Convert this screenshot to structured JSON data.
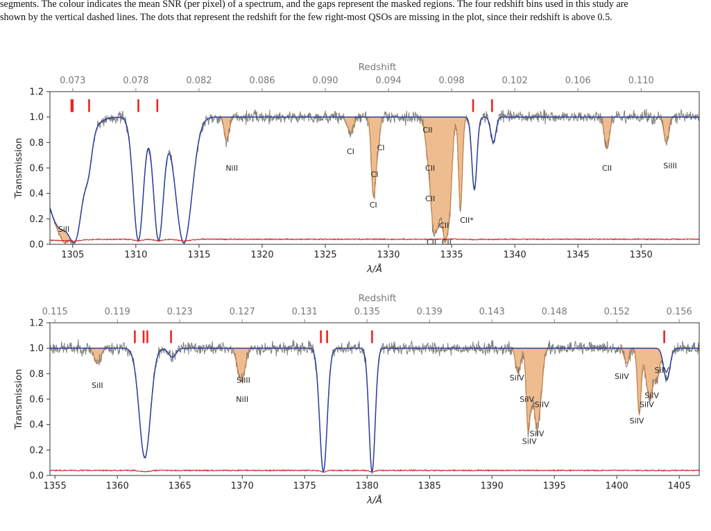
{
  "caption": {
    "line1": "segments. The colour indicates the mean SNR (per pixel) of a spectrum, and the gaps represent the masked regions. The four redshift bins used in this study are",
    "line2": "shown by the vertical dashed lines. The dots that represent the redshift for the few right-most QSOs are missing in the plot, since their redshift is above 0.5."
  },
  "colors": {
    "data": "#7f7f7f",
    "model": "#2a3f9e",
    "absorption_fill": "#eebd8f",
    "absorption_edge": "#c8834a",
    "error": "#cc2222",
    "marker": "#ee2222",
    "axis": "#333333"
  },
  "chart_data": [
    {
      "type": "line",
      "xlabel": "λ/Å",
      "ylabel": "Transmission",
      "top_axis_label": "Redshift",
      "xlim": [
        1303.2,
        1354.6
      ],
      "ylim": [
        0.0,
        1.2
      ],
      "x_ticks": [
        1305,
        1310,
        1315,
        1320,
        1325,
        1330,
        1335,
        1340,
        1345,
        1350
      ],
      "y_ticks": [
        "0.0",
        "0.2",
        "0.4",
        "0.6",
        "0.8",
        "1.0",
        "1.2"
      ],
      "top_ticks": [
        {
          "label": "0.073",
          "x": 1305.0
        },
        {
          "label": "0.078",
          "x": 1310.0
        },
        {
          "label": "0.082",
          "x": 1315.0
        },
        {
          "label": "0.086",
          "x": 1320.0
        },
        {
          "label": "0.090",
          "x": 1325.0
        },
        {
          "label": "0.094",
          "x": 1330.0
        },
        {
          "label": "0.098",
          "x": 1335.0
        },
        {
          "label": "0.102",
          "x": 1340.0
        },
        {
          "label": "0.106",
          "x": 1345.0
        },
        {
          "label": "0.110",
          "x": 1350.0
        }
      ],
      "model_lines": [
        {
          "center": 1304.0,
          "depth": 0.86,
          "width": 1.3
        },
        {
          "center": 1305.1,
          "depth": 0.97,
          "width": 0.55
        },
        {
          "center": 1306.2,
          "depth": 0.28,
          "width": 0.3
        },
        {
          "center": 1310.2,
          "depth": 0.97,
          "width": 0.4
        },
        {
          "center": 1311.8,
          "depth": 0.97,
          "width": 0.4
        },
        {
          "center": 1313.8,
          "depth": 0.99,
          "width": 0.65
        },
        {
          "center": 1336.8,
          "depth": 0.57,
          "width": 0.2
        },
        {
          "center": 1338.3,
          "depth": 0.2,
          "width": 0.2
        }
      ],
      "metal_lines": [
        {
          "label": "SiII",
          "center": 1304.4,
          "depth": 0.88,
          "width": 0.35,
          "lx": 1304.3,
          "ly": 0.12
        },
        {
          "label": "NiII",
          "center": 1317.2,
          "depth": 0.18,
          "width": 0.2,
          "lx": 1317.6,
          "ly": 0.6
        },
        {
          "label": "CI",
          "center": 1327.0,
          "depth": 0.12,
          "width": 0.25,
          "lx": 1327.0,
          "ly": 0.73
        },
        {
          "label": "CI",
          "center": 1328.8,
          "depth": 0.45,
          "width": 0.15,
          "lx": 1328.8,
          "ly": 0.31
        },
        {
          "label": "CI",
          "center": 1328.9,
          "depth": 0.35,
          "width": 0.2,
          "lx": 1328.9,
          "ly": 0.55
        },
        {
          "label": "CI",
          "center": 1329.2,
          "depth": 0.15,
          "width": 0.15,
          "lx": 1329.4,
          "ly": 0.76
        },
        {
          "label": "CII",
          "center": 1333.3,
          "depth": 0.4,
          "width": 0.3,
          "lx": 1333.3,
          "ly": 0.6
        },
        {
          "label": "CII",
          "center": 1333.6,
          "depth": 0.8,
          "width": 0.2,
          "lx": 1333.3,
          "ly": 0.36
        },
        {
          "label": "CII",
          "center": 1333.9,
          "depth": 0.75,
          "width": 0.25,
          "lx": 1333.4,
          "ly": 0.02
        },
        {
          "label": "CII",
          "center": 1334.5,
          "depth": 0.97,
          "width": 0.25,
          "lx": 1334.4,
          "ly": 0.15
        },
        {
          "label": "CII",
          "center": 1334.8,
          "depth": 0.6,
          "width": 0.2,
          "lx": 1334.6,
          "ly": 0.02
        },
        {
          "label": "CII",
          "center": 1334.3,
          "depth": 0.45,
          "width": 0.4,
          "lx": 1333.1,
          "ly": 0.9
        },
        {
          "label": "CII*",
          "center": 1335.7,
          "depth": 0.72,
          "width": 0.15,
          "lx": 1336.2,
          "ly": 0.19
        },
        {
          "label": "CII",
          "center": 1347.3,
          "depth": 0.25,
          "width": 0.2,
          "lx": 1347.3,
          "ly": 0.6
        },
        {
          "label": "SiIII",
          "center": 1352.0,
          "depth": 0.2,
          "width": 0.2,
          "lx": 1352.3,
          "ly": 0.62
        }
      ],
      "markers": [
        {
          "x": 1304.9
        },
        {
          "x": 1305.0
        },
        {
          "x": 1306.3
        },
        {
          "x": 1310.2
        },
        {
          "x": 1311.7
        },
        {
          "x": 1336.7
        },
        {
          "x": 1338.2
        }
      ],
      "noise_seed": 7,
      "error_level": 0.04
    },
    {
      "type": "line",
      "xlabel": "λ/Å",
      "ylabel": "Transmission",
      "top_axis_label": "Redshift",
      "xlim": [
        1354.6,
        1406.6
      ],
      "ylim": [
        0.0,
        1.2
      ],
      "x_ticks": [
        1355,
        1360,
        1365,
        1370,
        1375,
        1380,
        1385,
        1390,
        1395,
        1400,
        1405
      ],
      "y_ticks": [
        "0.0",
        "0.2",
        "0.4",
        "0.6",
        "0.8",
        "1.0",
        "1.2"
      ],
      "top_ticks": [
        {
          "label": "0.115",
          "x": 1355.0
        },
        {
          "label": "0.119",
          "x": 1360.0
        },
        {
          "label": "0.123",
          "x": 1365.0
        },
        {
          "label": "0.127",
          "x": 1370.0
        },
        {
          "label": "0.131",
          "x": 1375.0
        },
        {
          "label": "0.135",
          "x": 1380.0
        },
        {
          "label": "0.139",
          "x": 1385.0
        },
        {
          "label": "0.143",
          "x": 1390.0
        },
        {
          "label": "0.148",
          "x": 1395.0
        },
        {
          "label": "0.152",
          "x": 1400.0
        },
        {
          "label": "0.156",
          "x": 1405.0
        }
      ],
      "model_lines": [
        {
          "center": 1362.2,
          "depth": 0.86,
          "width": 0.45
        },
        {
          "center": 1364.4,
          "depth": 0.07,
          "width": 0.3
        },
        {
          "center": 1376.5,
          "depth": 0.97,
          "width": 0.3
        },
        {
          "center": 1380.4,
          "depth": 0.97,
          "width": 0.25
        },
        {
          "center": 1404.0,
          "depth": 0.25,
          "width": 0.25
        }
      ],
      "metal_lines": [
        {
          "label": "SiII",
          "center": 1358.4,
          "depth": 0.12,
          "width": 0.25,
          "lx": 1358.4,
          "ly": 0.71
        },
        {
          "label": "SiIII",
          "center": 1369.9,
          "depth": 0.2,
          "width": 0.3,
          "lx": 1370.1,
          "ly": 0.75
        },
        {
          "label": "NiII",
          "center": 1370.0,
          "depth": 0.07,
          "width": 0.3,
          "lx": 1370.0,
          "ly": 0.6
        },
        {
          "label": "SiIV",
          "center": 1392.1,
          "depth": 0.2,
          "width": 0.2,
          "lx": 1392.0,
          "ly": 0.77
        },
        {
          "label": "SiIV",
          "center": 1392.9,
          "depth": 0.62,
          "width": 0.15,
          "lx": 1392.8,
          "ly": 0.6
        },
        {
          "label": "SiIV",
          "center": 1393.2,
          "depth": 0.35,
          "width": 0.2,
          "lx": 1393.0,
          "ly": 0.27
        },
        {
          "label": "SiIV",
          "center": 1393.6,
          "depth": 0.58,
          "width": 0.2,
          "lx": 1393.6,
          "ly": 0.33
        },
        {
          "label": "SiIV",
          "center": 1393.9,
          "depth": 0.3,
          "width": 0.2,
          "lx": 1394.0,
          "ly": 0.56
        },
        {
          "label": "SiIV",
          "center": 1400.8,
          "depth": 0.12,
          "width": 0.2,
          "lx": 1400.4,
          "ly": 0.78
        },
        {
          "label": "SiIV",
          "center": 1401.8,
          "depth": 0.52,
          "width": 0.15,
          "lx": 1401.6,
          "ly": 0.43
        },
        {
          "label": "SiIV",
          "center": 1402.4,
          "depth": 0.2,
          "width": 0.2,
          "lx": 1402.4,
          "ly": 0.56
        },
        {
          "label": "SiIV",
          "center": 1402.7,
          "depth": 0.35,
          "width": 0.2,
          "lx": 1402.8,
          "ly": 0.63
        },
        {
          "label": "SiIV",
          "center": 1403.2,
          "depth": 0.25,
          "width": 0.2,
          "lx": 1403.6,
          "ly": 0.83
        }
      ],
      "markers": [
        {
          "x": 1361.4
        },
        {
          "x": 1362.1
        },
        {
          "x": 1362.4
        },
        {
          "x": 1364.3
        },
        {
          "x": 1376.3
        },
        {
          "x": 1376.8
        },
        {
          "x": 1380.4
        },
        {
          "x": 1403.8
        }
      ],
      "noise_seed": 23,
      "error_level": 0.04
    }
  ]
}
